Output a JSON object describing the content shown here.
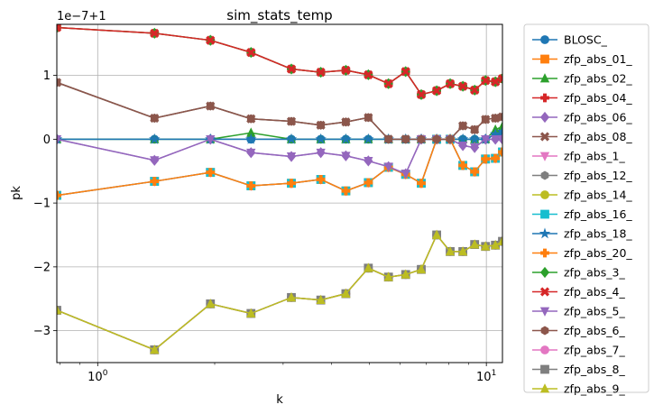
{
  "chart_data": {
    "type": "line",
    "title": "sim_stats_temp",
    "xlabel": "k",
    "ylabel": "pk",
    "x_scale": "log",
    "xlim": [
      0.785,
      11.0
    ],
    "ylim": [
      -3.5,
      1.8
    ],
    "y_offset_label": "1e−7+1",
    "grid": true,
    "legend_position": "outside-right",
    "x_tick_labels": [
      {
        "value": 1,
        "base": "10",
        "exp": "0"
      },
      {
        "value": 10,
        "base": "10",
        "exp": "1"
      }
    ],
    "y_tick_labels": [
      {
        "value": 1,
        "label": "1"
      },
      {
        "value": 0,
        "label": "0"
      },
      {
        "value": -1,
        "label": "−1"
      },
      {
        "value": -2,
        "label": "−2"
      },
      {
        "value": -3,
        "label": "−3"
      }
    ],
    "x": [
      0.785,
      1.4,
      1.95,
      2.48,
      3.15,
      3.75,
      4.35,
      4.97,
      5.6,
      6.2,
      6.8,
      7.45,
      8.07,
      8.7,
      9.33,
      9.95,
      10.55,
      11.0
    ],
    "series": [
      {
        "name": "BLOSC_",
        "color": "#1f77b4",
        "marker": "o",
        "values": [
          0,
          0,
          0,
          0,
          0,
          0,
          0,
          0,
          0,
          0,
          0,
          0,
          0,
          0,
          0,
          0,
          0.08,
          0.12
        ]
      },
      {
        "name": "zfp_abs_01_",
        "color": "#ff7f0e",
        "marker": "s",
        "values": [
          -0.88,
          -0.66,
          -0.52,
          -0.73,
          -0.69,
          -0.63,
          -0.81,
          -0.68,
          -0.44,
          -0.55,
          -0.69,
          0,
          0,
          -0.41,
          -0.51,
          -0.31,
          -0.3,
          -0.2
        ]
      },
      {
        "name": "zfp_abs_02_",
        "color": "#2ca02c",
        "marker": "^",
        "values": [
          0,
          0,
          0,
          0.1,
          0,
          0,
          0,
          0,
          0,
          0,
          0,
          0,
          0,
          0,
          0,
          0,
          0.15,
          0.2
        ]
      },
      {
        "name": "zfp_abs_04_",
        "color": "#d62728",
        "marker": "P",
        "values": [
          1.75,
          1.66,
          1.55,
          1.36,
          1.1,
          1.05,
          1.08,
          1.01,
          0.87,
          1.06,
          0.7,
          0.76,
          0.87,
          0.83,
          0.77,
          0.92,
          0.9,
          0.95
        ]
      },
      {
        "name": "zfp_abs_06_",
        "color": "#9467bd",
        "marker": "D",
        "values": [
          0,
          -0.33,
          0,
          -0.21,
          -0.27,
          -0.21,
          -0.26,
          -0.34,
          -0.43,
          -0.54,
          0,
          0,
          0,
          -0.1,
          -0.13,
          0,
          0,
          0
        ]
      },
      {
        "name": "zfp_abs_08_",
        "color": "#8c564b",
        "marker": "X",
        "values": [
          0.89,
          0.33,
          0.52,
          0.32,
          0.28,
          0.22,
          0.27,
          0.34,
          0,
          0,
          0,
          0,
          0,
          0.21,
          0.15,
          0.31,
          0.33,
          0.35
        ]
      },
      {
        "name": "zfp_abs_1_",
        "color": "#e377c2",
        "marker": "v",
        "values": [
          -0.88,
          -0.66,
          -0.52,
          -0.73,
          -0.69,
          -0.63,
          -0.81,
          -0.68,
          -0.44,
          -0.55,
          -0.69,
          0,
          0,
          -0.41,
          -0.51,
          -0.31,
          -0.3,
          -0.2
        ]
      },
      {
        "name": "zfp_abs_12_",
        "color": "#7f7f7f",
        "marker": "h",
        "values": [
          0.89,
          0.33,
          0.52,
          0.32,
          0.28,
          0.22,
          0.27,
          0.34,
          0,
          0,
          0,
          0,
          0,
          0.21,
          0.15,
          0.31,
          0.33,
          0.35
        ]
      },
      {
        "name": "zfp_abs_14_",
        "color": "#bcbd22",
        "marker": "o",
        "values": [
          -2.68,
          -3.3,
          -2.58,
          -2.73,
          -2.48,
          -2.52,
          -2.42,
          -2.02,
          -2.16,
          -2.12,
          -2.04,
          -1.5,
          -1.76,
          -1.76,
          -1.65,
          -1.68,
          -1.66,
          -1.6
        ]
      },
      {
        "name": "zfp_abs_16_",
        "color": "#17becf",
        "marker": "s",
        "values": [
          -0.88,
          -0.66,
          -0.52,
          -0.73,
          -0.69,
          -0.63,
          -0.81,
          -0.68,
          -0.44,
          -0.55,
          -0.69,
          0,
          0,
          -0.41,
          -0.51,
          -0.31,
          -0.3,
          -0.2
        ]
      },
      {
        "name": "zfp_abs_18_",
        "color": "#1f77b4",
        "marker": "*",
        "values": [
          0,
          0,
          0,
          0,
          0,
          0,
          0,
          0,
          0,
          0,
          0,
          0,
          0,
          0,
          0,
          0,
          0.08,
          0.12
        ]
      },
      {
        "name": "zfp_abs_20_",
        "color": "#ff7f0e",
        "marker": "P",
        "values": [
          -0.88,
          -0.66,
          -0.52,
          -0.73,
          -0.69,
          -0.63,
          -0.81,
          -0.68,
          -0.44,
          -0.55,
          -0.69,
          0,
          0,
          -0.41,
          -0.51,
          -0.31,
          -0.3,
          -0.2
        ]
      },
      {
        "name": "zfp_abs_3_",
        "color": "#2ca02c",
        "marker": "D",
        "values": [
          1.75,
          1.66,
          1.55,
          1.36,
          1.1,
          1.05,
          1.08,
          1.01,
          0.87,
          1.06,
          0.7,
          0.76,
          0.87,
          0.83,
          0.77,
          0.92,
          0.9,
          0.95
        ]
      },
      {
        "name": "zfp_abs_4_",
        "color": "#d62728",
        "marker": "X",
        "values": [
          1.75,
          1.66,
          1.55,
          1.36,
          1.1,
          1.05,
          1.08,
          1.01,
          0.87,
          1.06,
          0.7,
          0.76,
          0.87,
          0.83,
          0.77,
          0.92,
          0.9,
          0.95
        ]
      },
      {
        "name": "zfp_abs_5_",
        "color": "#9467bd",
        "marker": "v",
        "values": [
          0,
          -0.33,
          0,
          -0.21,
          -0.27,
          -0.21,
          -0.26,
          -0.34,
          -0.43,
          -0.54,
          0,
          0,
          0,
          -0.1,
          -0.13,
          0,
          0,
          0
        ]
      },
      {
        "name": "zfp_abs_6_",
        "color": "#8c564b",
        "marker": "h",
        "values": [
          0.89,
          0.33,
          0.52,
          0.32,
          0.28,
          0.22,
          0.27,
          0.34,
          0,
          0,
          0,
          0,
          0,
          0.21,
          0.15,
          0.31,
          0.33,
          0.35
        ]
      },
      {
        "name": "zfp_abs_7_",
        "color": "#e377c2",
        "marker": "o",
        "values": [
          -2.68,
          -3.3,
          -2.58,
          -2.73,
          -2.48,
          -2.52,
          -2.42,
          -2.02,
          -2.16,
          -2.12,
          -2.04,
          -1.5,
          -1.76,
          -1.76,
          -1.65,
          -1.68,
          -1.66,
          -1.6
        ]
      },
      {
        "name": "zfp_abs_8_",
        "color": "#7f7f7f",
        "marker": "s",
        "values": [
          -2.68,
          -3.3,
          -2.58,
          -2.73,
          -2.48,
          -2.52,
          -2.42,
          -2.02,
          -2.16,
          -2.12,
          -2.04,
          -1.5,
          -1.76,
          -1.76,
          -1.65,
          -1.68,
          -1.66,
          -1.6
        ]
      },
      {
        "name": "zfp_abs_9_",
        "color": "#bcbd22",
        "marker": "^",
        "values": [
          -2.68,
          -3.3,
          -2.58,
          -2.73,
          -2.48,
          -2.52,
          -2.42,
          -2.02,
          -2.16,
          -2.12,
          -2.04,
          -1.5,
          -1.76,
          -1.76,
          -1.65,
          -1.68,
          -1.66,
          -1.6
        ]
      }
    ]
  }
}
